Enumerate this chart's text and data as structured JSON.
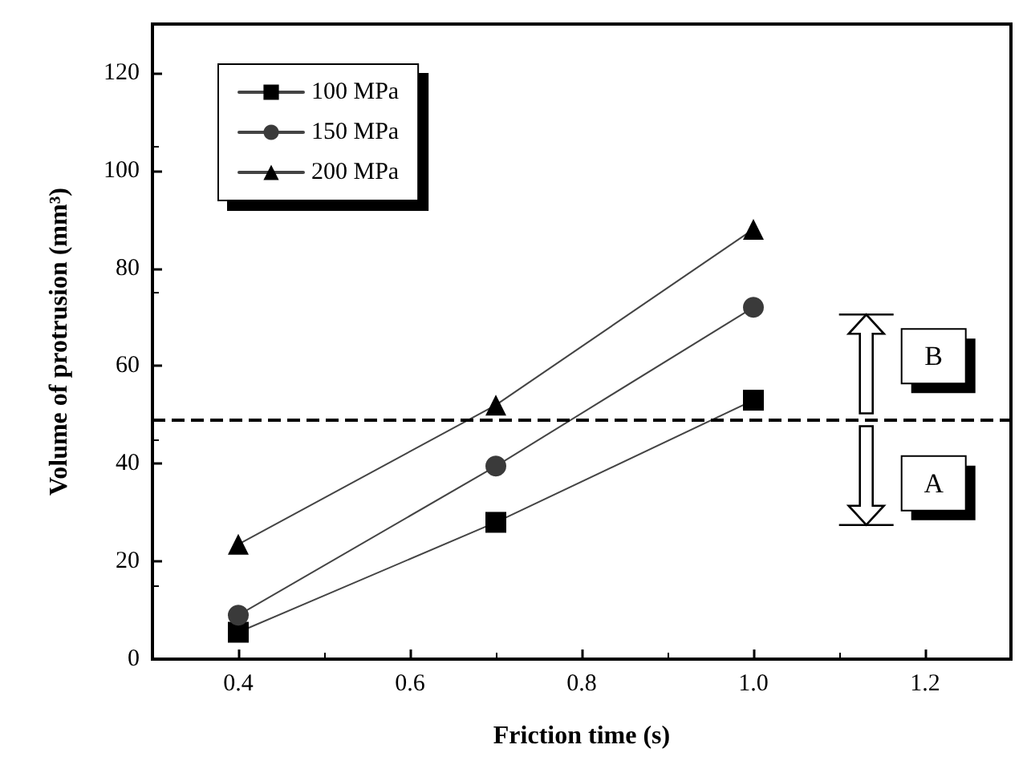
{
  "chart_data": {
    "type": "line",
    "xlabel": "Friction time (s)",
    "ylabel": "Volume of protrusion (mm³)",
    "x": [
      0.4,
      0.7,
      1.0
    ],
    "series": [
      {
        "name": "100 MPa",
        "color": "#000000",
        "marker": "square",
        "values": [
          5.5,
          28,
          53
        ]
      },
      {
        "name": "150 MPa",
        "color": "#3a3a3a",
        "marker": "circle",
        "values": [
          9,
          39.5,
          72
        ]
      },
      {
        "name": "200 MPa",
        "color": "#000000",
        "marker": "triangle",
        "values": [
          23.5,
          52,
          88
        ]
      }
    ],
    "xlim": [
      0.3,
      1.3
    ],
    "xticks": [
      0.4,
      0.6,
      0.8,
      {
        "value": 1,
        "label": "1.0"
      },
      1.2
    ],
    "ylim": [
      0,
      130
    ],
    "yticks": [
      0,
      20,
      40,
      60,
      80,
      100,
      120
    ],
    "ref_lines": [
      {
        "axis": "y",
        "value": 49,
        "line_style": "dashed",
        "color": "#000000"
      }
    ],
    "annotations": [
      {
        "text": "B",
        "x": 1.21,
        "y": 62
      },
      {
        "text": "A",
        "x": 1.21,
        "y": 36
      }
    ],
    "legend": "top left",
    "grid": false,
    "line_style": "solid"
  }
}
